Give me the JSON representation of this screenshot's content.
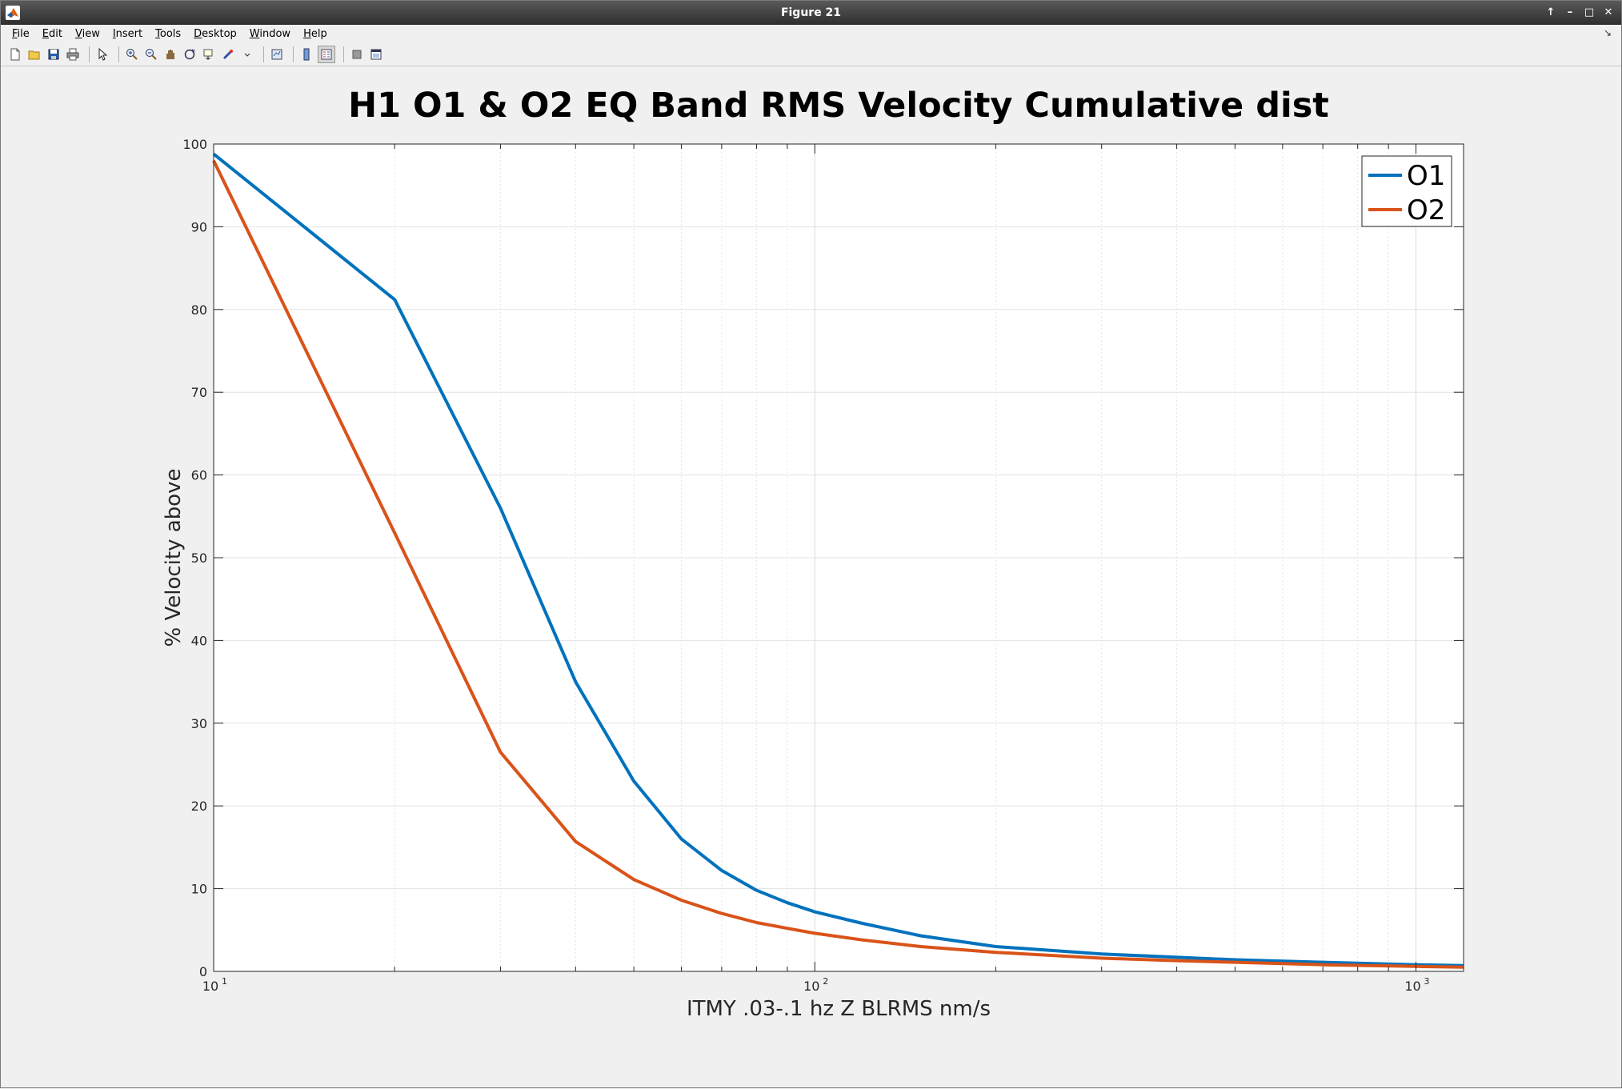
{
  "window": {
    "title": "Figure 21"
  },
  "window_controls": [
    "↑",
    "–",
    "□",
    "✕"
  ],
  "menu": {
    "items": [
      "File",
      "Edit",
      "View",
      "Insert",
      "Tools",
      "Desktop",
      "Window",
      "Help"
    ],
    "dock_arrow": "↘"
  },
  "toolbar": {
    "icons": [
      "new-figure-icon",
      "open-file-icon",
      "save-icon",
      "print-icon",
      "pointer-icon",
      "zoom-in-icon",
      "zoom-out-icon",
      "pan-icon",
      "rotate-icon",
      "data-cursor-icon",
      "brush-icon",
      "link-icon",
      "colorbar-icon",
      "legend-icon",
      "hide-tools-icon",
      "dock-icon"
    ]
  },
  "chart_data": {
    "type": "line",
    "title": "H1 O1 & O2  EQ Band RMS Velocity Cumulative dist",
    "xlabel": "ITMY .03-.1 hz Z BLRMS nm/s",
    "ylabel": "% Velocity above",
    "xscale": "log",
    "xlim": [
      10,
      1200
    ],
    "ylim": [
      0,
      100
    ],
    "yticks": [
      0,
      10,
      20,
      30,
      40,
      50,
      60,
      70,
      80,
      90,
      100
    ],
    "xticks": [
      {
        "value": 10,
        "base": "10",
        "exp": "1"
      },
      {
        "value": 100,
        "base": "10",
        "exp": "2"
      },
      {
        "value": 1000,
        "base": "10",
        "exp": "3"
      }
    ],
    "grid": true,
    "legend_position": "top-right",
    "series": [
      {
        "name": "O1",
        "color": "#0072bd",
        "x": [
          10,
          20,
          30,
          40,
          50,
          60,
          70,
          80,
          90,
          100,
          120,
          150,
          200,
          300,
          400,
          500,
          700,
          1000,
          1200
        ],
        "y": [
          98.8,
          81.2,
          56,
          35,
          23,
          16,
          12.2,
          9.8,
          8.3,
          7.2,
          5.8,
          4.3,
          3.0,
          2.1,
          1.7,
          1.4,
          1.1,
          0.8,
          0.7
        ]
      },
      {
        "name": "O2",
        "color": "#d95319",
        "x": [
          10,
          20,
          30,
          40,
          50,
          60,
          70,
          80,
          90,
          100,
          120,
          150,
          200,
          300,
          400,
          500,
          700,
          1000,
          1200
        ],
        "y": [
          98.0,
          53,
          26.5,
          15.7,
          11.1,
          8.6,
          7.0,
          5.9,
          5.2,
          4.6,
          3.8,
          3.0,
          2.3,
          1.6,
          1.3,
          1.1,
          0.8,
          0.6,
          0.5
        ]
      }
    ]
  }
}
